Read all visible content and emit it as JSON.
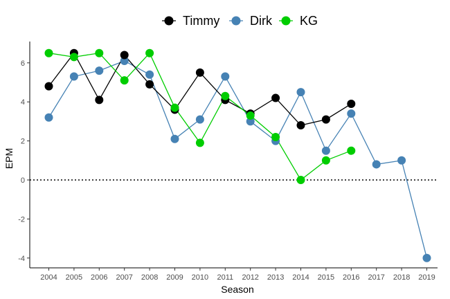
{
  "chart_data": {
    "type": "line",
    "xlabel": "Season",
    "ylabel": "EPM",
    "ylim": [
      -4.4,
      7.0
    ],
    "y_ticks": [
      -4,
      -2,
      0,
      2,
      4,
      6
    ],
    "y_tick_labels": [
      "-4",
      "-2",
      "0",
      "2",
      "4",
      "6"
    ],
    "x": [
      2004,
      2005,
      2006,
      2007,
      2008,
      2009,
      2010,
      2011,
      2012,
      2013,
      2014,
      2015,
      2016,
      2017,
      2018,
      2019
    ],
    "x_tick_labels": [
      "2004",
      "2005",
      "2006",
      "2007",
      "2008",
      "2009",
      "2010",
      "2011",
      "2012",
      "2013",
      "2014",
      "2015",
      "2016",
      "2017",
      "2018",
      "2019"
    ],
    "grid": false,
    "reference_line": {
      "y": 0,
      "style": "dotted"
    },
    "legend": {
      "position": "top"
    },
    "series": [
      {
        "name": "Dirk",
        "color": "#4682b4",
        "x": [
          2004,
          2005,
          2006,
          2007,
          2008,
          2009,
          2010,
          2011,
          2012,
          2013,
          2014,
          2015,
          2016,
          2017,
          2018,
          2019
        ],
        "values": [
          3.2,
          5.3,
          5.6,
          6.1,
          5.4,
          2.1,
          3.1,
          5.3,
          3.0,
          2.0,
          4.5,
          1.5,
          3.4,
          0.8,
          1.0,
          -4.0
        ]
      },
      {
        "name": "Timmy",
        "color": "#000000",
        "x": [
          2004,
          2005,
          2006,
          2007,
          2008,
          2009,
          2010,
          2011,
          2012,
          2013,
          2014,
          2015,
          2016
        ],
        "values": [
          4.8,
          6.5,
          4.1,
          6.4,
          4.9,
          3.6,
          5.5,
          4.1,
          3.4,
          4.2,
          2.8,
          3.1,
          3.9
        ]
      },
      {
        "name": "KG",
        "color": "#00cd00",
        "x": [
          2004,
          2005,
          2006,
          2007,
          2008,
          2009,
          2010,
          2011,
          2012,
          2013,
          2014,
          2015,
          2016
        ],
        "values": [
          6.5,
          6.3,
          6.5,
          5.1,
          6.5,
          3.7,
          1.9,
          4.3,
          3.3,
          2.2,
          0.0,
          1.0,
          1.5
        ]
      }
    ],
    "legend_order": [
      "Timmy",
      "Dirk",
      "KG"
    ]
  }
}
